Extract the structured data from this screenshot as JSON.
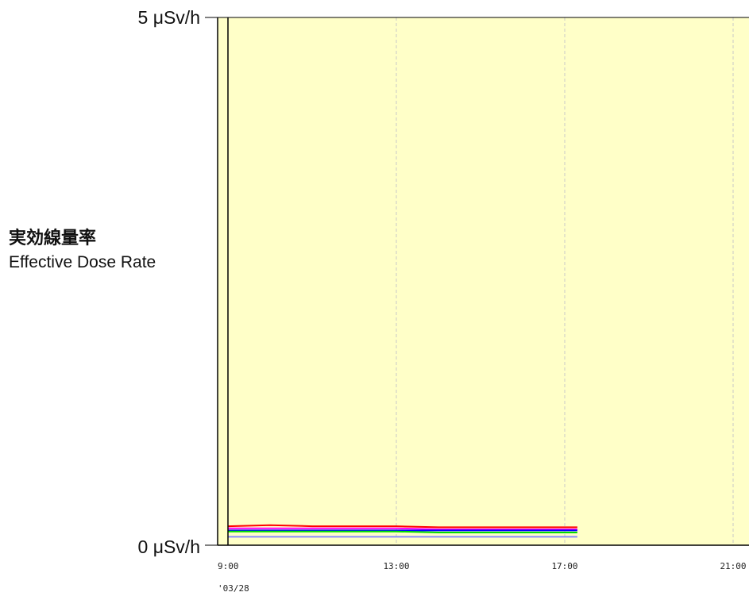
{
  "chart_data": {
    "type": "line",
    "ylabel_jp": "実効線量率",
    "ylabel_en": "Effective Dose Rate",
    "ylim": [
      0,
      5
    ],
    "y_tick_labels": [
      "0 μSv/h",
      "5 μSv/h"
    ],
    "x_start_hour": 9,
    "x_end_hour": 24,
    "x_tick_labels": [
      "9:00",
      "13:00",
      "17:00",
      "21:00"
    ],
    "x_tick_hours": [
      9,
      13,
      17,
      21
    ],
    "date_label": "'03/28",
    "grid": "vertical dashed",
    "colors": {
      "background": "#ffffc8",
      "grid": "#c9c9c9",
      "axis": "#000000"
    },
    "series": [
      {
        "color": "#ff0000",
        "x": [
          9.0,
          10.0,
          11.0,
          12.0,
          13.0,
          14.0,
          15.0,
          16.0,
          17.0,
          17.3
        ],
        "values": [
          0.18,
          0.19,
          0.18,
          0.18,
          0.18,
          0.17,
          0.17,
          0.17,
          0.17,
          0.17
        ]
      },
      {
        "color": "#ff00ff",
        "x": [
          9.0,
          10.0,
          11.0,
          12.0,
          13.0,
          14.0,
          15.0,
          16.0,
          17.0,
          17.3
        ],
        "values": [
          0.16,
          0.16,
          0.16,
          0.16,
          0.16,
          0.15,
          0.15,
          0.15,
          0.15,
          0.15
        ]
      },
      {
        "color": "#0000ff",
        "x": [
          9.0,
          10.0,
          11.0,
          12.0,
          13.0,
          14.0,
          15.0,
          16.0,
          17.0,
          17.3
        ],
        "values": [
          0.14,
          0.14,
          0.14,
          0.14,
          0.14,
          0.14,
          0.14,
          0.14,
          0.14,
          0.14
        ]
      },
      {
        "color": "#00dd00",
        "x": [
          9.0,
          10.0,
          11.0,
          12.0,
          13.0,
          14.0,
          15.0,
          16.0,
          17.0,
          17.3
        ],
        "values": [
          0.13,
          0.13,
          0.13,
          0.13,
          0.13,
          0.12,
          0.12,
          0.12,
          0.12,
          0.12
        ]
      },
      {
        "color": "#8888ff",
        "x": [
          9.0,
          10.0,
          11.0,
          12.0,
          13.0,
          14.0,
          15.0,
          16.0,
          17.0,
          17.3
        ],
        "values": [
          0.08,
          0.08,
          0.08,
          0.08,
          0.08,
          0.08,
          0.08,
          0.08,
          0.08,
          0.08
        ]
      }
    ]
  }
}
